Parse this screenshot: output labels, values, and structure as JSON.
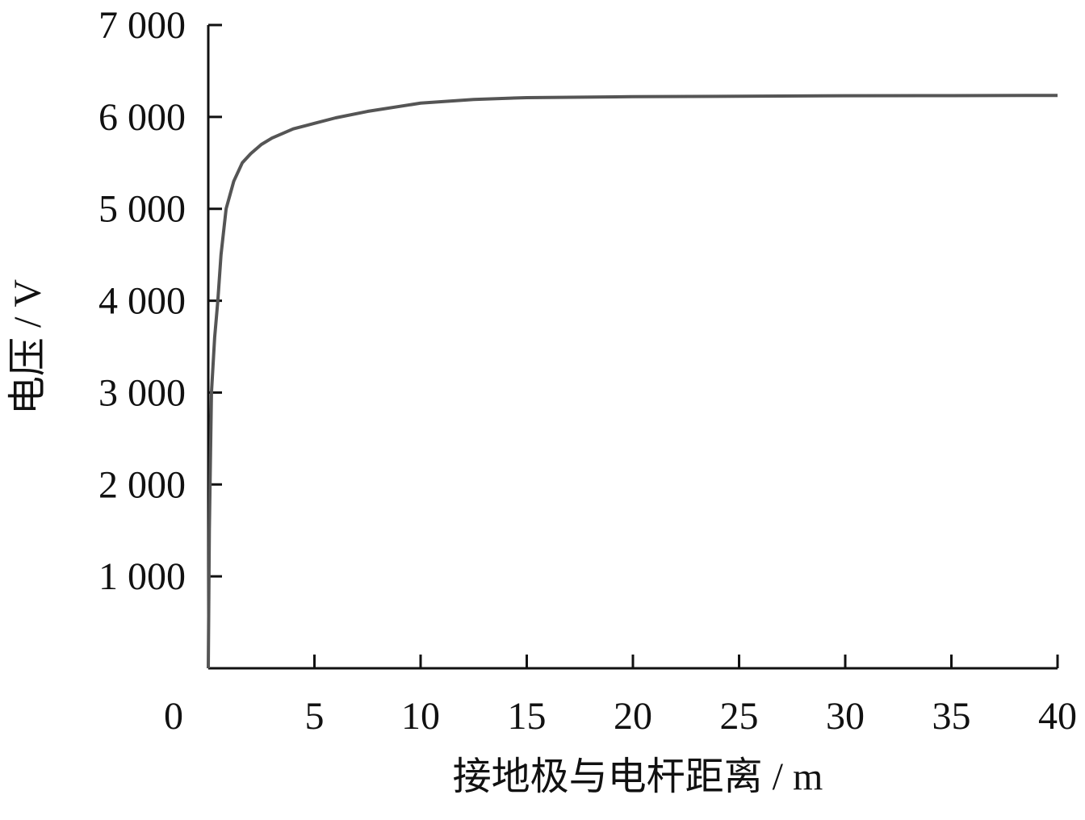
{
  "chart_data": {
    "type": "line",
    "x_label": "接地极与电杆距离 / m",
    "y_label": "电压 / V",
    "xlim": [
      0,
      40
    ],
    "xticks": [
      0,
      5,
      10,
      15,
      20,
      25,
      30,
      35,
      40
    ],
    "ylim": [
      0,
      7000
    ],
    "yticks": [
      {
        "value": 1000,
        "label": "1 000"
      },
      {
        "value": 2000,
        "label": "2 000"
      },
      {
        "value": 3000,
        "label": "3 000"
      },
      {
        "value": 4000,
        "label": "4 000"
      },
      {
        "value": 5000,
        "label": "5 000"
      },
      {
        "value": 6000,
        "label": "6 000"
      },
      {
        "value": 7000,
        "label": "7 000"
      }
    ],
    "grid": false,
    "series": [
      {
        "color": "#555555",
        "x": [
          0,
          0.05,
          0.15,
          0.3,
          0.45,
          0.6,
          0.84,
          1.2,
          1.6,
          2,
          2.5,
          3,
          4,
          5,
          6,
          7.5,
          10,
          12.5,
          15,
          20,
          25,
          30,
          35,
          40
        ],
        "values": [
          0,
          1500,
          3000,
          3600,
          4000,
          4500,
          5000,
          5300,
          5500,
          5600,
          5700,
          5770,
          5870,
          5930,
          5990,
          6060,
          6150,
          6190,
          6210,
          6220,
          6225,
          6230,
          6232,
          6234
        ]
      }
    ]
  }
}
